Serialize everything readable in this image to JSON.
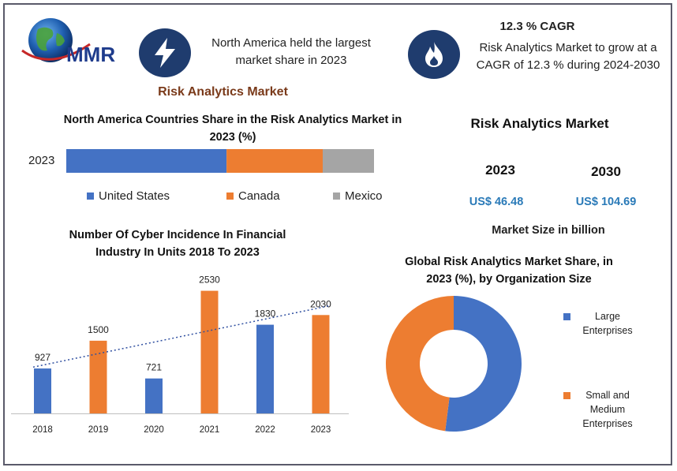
{
  "logo": {
    "text": "MMR"
  },
  "header": {
    "left_text": "North America held the largest market share in 2023",
    "right_title": "12.3 % CAGR",
    "right_text": "Risk Analytics Market to grow at a CAGR of 12.3 % during 2024-2030",
    "left_icon": "lightning-bolt-icon",
    "right_icon": "flame-icon"
  },
  "main_title": "Risk Analytics Market",
  "market_size": {
    "title": "Risk Analytics Market",
    "year_1": "2023",
    "year_2": "2030",
    "value_1": "US$ 46.48",
    "value_2": "US$ 104.69",
    "footer": "Market Size in billion"
  },
  "colors": {
    "blue": "#4472c4",
    "orange": "#ed7d31",
    "gray": "#a5a5a5",
    "navy": "#1f3c6e"
  },
  "chart_data": [
    {
      "type": "bar",
      "orientation": "horizontal-stacked",
      "title": "North America Countries Share in the  Risk Analytics Market  in 2023 (%)",
      "categories": [
        "2023"
      ],
      "series": [
        {
          "name": "United States",
          "values": [
            50
          ]
        },
        {
          "name": "Canada",
          "values": [
            30
          ]
        },
        {
          "name": "Mexico",
          "values": [
            16
          ]
        }
      ],
      "legend": "bottom"
    },
    {
      "type": "bar",
      "title": "Number Of Cyber Incidence In  Financial Industry In Units 2018 To 2023",
      "categories": [
        "2018",
        "2019",
        "2020",
        "2021",
        "2022",
        "2023"
      ],
      "values": [
        927,
        1500,
        721,
        2530,
        1830,
        2030
      ],
      "value_labels": [
        "927",
        "1500",
        "721",
        "2530",
        "1830",
        "2030"
      ],
      "trendline": "linear",
      "ylim": [
        0,
        2800
      ]
    },
    {
      "type": "pie",
      "donut": true,
      "title": "Global Risk Analytics  Market  Share, in 2023 (%), by Organization Size",
      "series": [
        {
          "name": "Large Enterprises",
          "values": [
            52
          ]
        },
        {
          "name": "Small and Medium Enterprises",
          "values": [
            48
          ]
        }
      ],
      "legend": "right"
    }
  ]
}
